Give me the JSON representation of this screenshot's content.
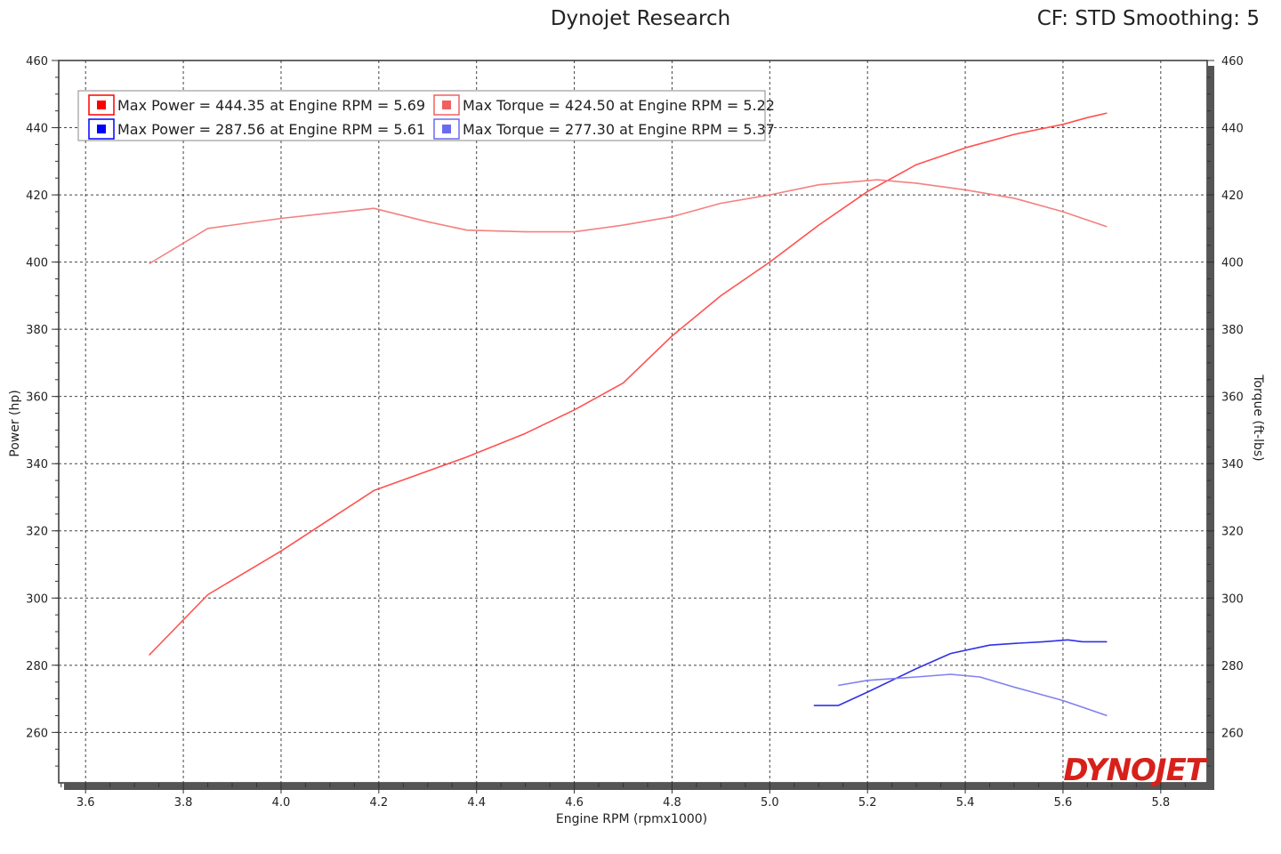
{
  "header": {
    "title": "Dynojet Research",
    "settings": "CF: STD Smoothing: 5"
  },
  "logo": {
    "text": "DYNOJET"
  },
  "chart_data": {
    "type": "line",
    "xlabel": "Engine RPM (rpmx1000)",
    "ylabel_left": "Power (hp)",
    "ylabel_right": "Torque (ft-lbs)",
    "xlim": [
      3.545,
      5.895
    ],
    "ylim": [
      245,
      460
    ],
    "x_ticks": [
      3.6,
      3.8,
      4.0,
      4.2,
      4.4,
      4.6,
      4.8,
      5.0,
      5.2,
      5.4,
      5.6,
      5.8
    ],
    "y_ticks": [
      260,
      280,
      300,
      320,
      340,
      360,
      380,
      400,
      420,
      440,
      460
    ],
    "grid": true,
    "legend_position": "top-left",
    "legend": [
      {
        "label": "Max Power = 444.35 at Engine RPM = 5.69",
        "color": "#ff0000"
      },
      {
        "label": "Max Torque = 424.50 at Engine RPM = 5.22",
        "color": "#f06060"
      },
      {
        "label": "Max Power = 287.56 at Engine RPM = 5.61",
        "color": "#0000ff"
      },
      {
        "label": "Max Torque = 277.30 at Engine RPM = 5.37",
        "color": "#6a6af0"
      }
    ],
    "series": [
      {
        "color": "#ff5050",
        "points": [
          [
            3.73,
            283
          ],
          [
            3.85,
            301
          ],
          [
            4.0,
            314
          ],
          [
            4.19,
            332
          ],
          [
            4.38,
            342
          ],
          [
            4.5,
            349
          ],
          [
            4.6,
            356
          ],
          [
            4.7,
            364
          ],
          [
            4.8,
            378
          ],
          [
            4.9,
            390
          ],
          [
            5.0,
            400
          ],
          [
            5.1,
            411
          ],
          [
            5.2,
            421
          ],
          [
            5.3,
            429
          ],
          [
            5.4,
            434
          ],
          [
            5.5,
            438
          ],
          [
            5.6,
            441
          ],
          [
            5.65,
            443
          ],
          [
            5.69,
            444.35
          ]
        ]
      },
      {
        "color": "#f58080",
        "points": [
          [
            3.73,
            399.5
          ],
          [
            3.85,
            410
          ],
          [
            4.0,
            413
          ],
          [
            4.19,
            416
          ],
          [
            4.3,
            412
          ],
          [
            4.38,
            409.5
          ],
          [
            4.5,
            409
          ],
          [
            4.6,
            409
          ],
          [
            4.7,
            411
          ],
          [
            4.8,
            413.5
          ],
          [
            4.9,
            417.5
          ],
          [
            5.0,
            420
          ],
          [
            5.1,
            423
          ],
          [
            5.22,
            424.5
          ],
          [
            5.3,
            423.5
          ],
          [
            5.4,
            421.5
          ],
          [
            5.5,
            419
          ],
          [
            5.6,
            415
          ],
          [
            5.69,
            410.5
          ]
        ]
      },
      {
        "color": "#3030e8",
        "points": [
          [
            5.09,
            268
          ],
          [
            5.14,
            268
          ],
          [
            5.2,
            272
          ],
          [
            5.3,
            279
          ],
          [
            5.37,
            283.5
          ],
          [
            5.45,
            286
          ],
          [
            5.5,
            286.5
          ],
          [
            5.56,
            287
          ],
          [
            5.61,
            287.56
          ],
          [
            5.64,
            287
          ],
          [
            5.69,
            287
          ]
        ]
      },
      {
        "color": "#8080f0",
        "points": [
          [
            5.14,
            274
          ],
          [
            5.2,
            275.5
          ],
          [
            5.3,
            276.5
          ],
          [
            5.37,
            277.3
          ],
          [
            5.43,
            276.5
          ],
          [
            5.5,
            273.5
          ],
          [
            5.6,
            269.5
          ],
          [
            5.65,
            267
          ],
          [
            5.69,
            265
          ]
        ]
      }
    ]
  }
}
